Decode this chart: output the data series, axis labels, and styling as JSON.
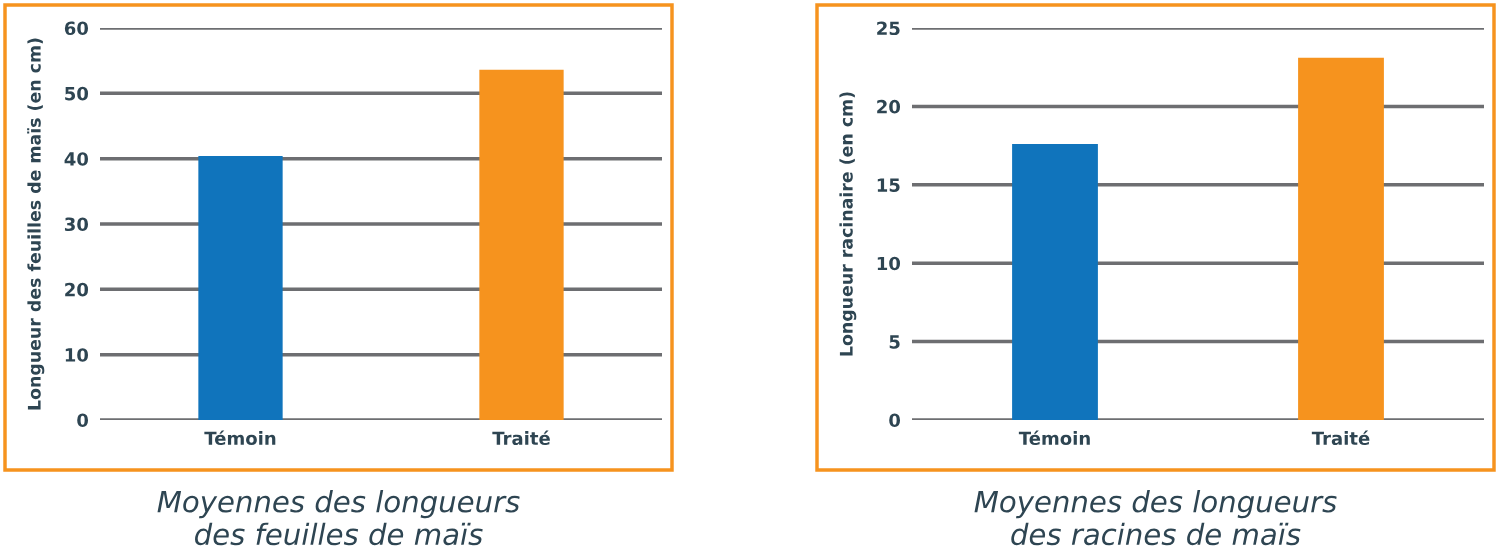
{
  "chart_data": [
    {
      "type": "bar",
      "title": "Moyennes des longueurs\ndes feuilles de maïs",
      "ylabel": "Longueur des feuilles de maïs (en cm)",
      "categories": [
        "Témoin",
        "Traité"
      ],
      "values": [
        40.4,
        53.6
      ],
      "colors": [
        "#1074bc",
        "#f6931e"
      ],
      "ylim": [
        0,
        60
      ],
      "yticks": [
        0,
        10,
        20,
        30,
        40,
        50,
        60
      ],
      "grid": "y",
      "legend": false
    },
    {
      "type": "bar",
      "title": "Moyennes des longueurs\ndes racines de maïs",
      "ylabel": "Longueur racinaire (en cm)",
      "categories": [
        "Témoin",
        "Traité"
      ],
      "values": [
        17.6,
        23.1
      ],
      "colors": [
        "#1074bc",
        "#f6931e"
      ],
      "ylim": [
        0,
        25
      ],
      "yticks": [
        0,
        5,
        10,
        15,
        20,
        25
      ],
      "grid": "y",
      "legend": false
    }
  ]
}
